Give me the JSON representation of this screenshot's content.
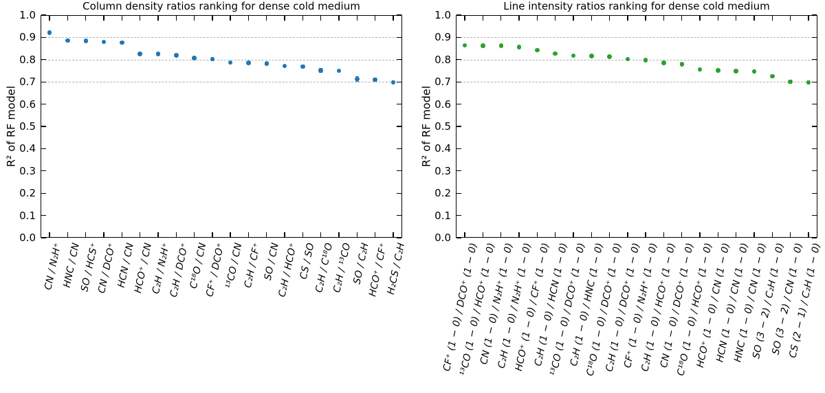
{
  "style": {
    "background": "#ffffff",
    "axis_color": "#000000",
    "grid_color": "#b0b0b0",
    "left_marker_color": "#1f77b4",
    "right_marker_color": "#2ca02c"
  },
  "y_axis": {
    "label": "R² of RF model",
    "tick_labels": [
      "0.0",
      "0.1",
      "0.2",
      "0.3",
      "0.4",
      "0.5",
      "0.6",
      "0.7",
      "0.8",
      "0.9",
      "1.0"
    ],
    "grid_values": [
      0.7,
      0.8,
      0.9
    ],
    "min": 0.0,
    "max": 1.0
  },
  "chart_data": [
    {
      "type": "scatter",
      "title": "Column density ratios ranking for dense cold medium",
      "ylabel": "R² of RF model",
      "xlabel": "",
      "ylim": [
        0.0,
        1.0
      ],
      "grid": "horizontal dashed lines at 0.7, 0.8, 0.9",
      "legend": "none",
      "marker_color": "#1f77b4",
      "categories": [
        "CN / N₂H⁺",
        "HNC / CN",
        "SO / HCS⁺",
        "CN / DCO⁺",
        "HCN / CN",
        "HCO⁺ / CN",
        "C₂H / N₂H⁺",
        "C₂H / DCO⁺",
        "C¹⁸O / CN",
        "CF⁺ / DCO⁺",
        "¹³CO / CN",
        "C₂H / CF⁺",
        "SO / CN",
        "C₂H / HCO⁺",
        "CS / SO",
        "C₂H / C¹⁸O",
        "C₂H / ¹³CO",
        "SO / C₂H",
        "HCO⁺ / CF⁺",
        "H₂CS / C₂H"
      ],
      "values": [
        0.921,
        0.886,
        0.884,
        0.879,
        0.877,
        0.826,
        0.825,
        0.82,
        0.807,
        0.802,
        0.787,
        0.786,
        0.782,
        0.771,
        0.769,
        0.752,
        0.75,
        0.713,
        0.71,
        0.698
      ],
      "errors": [
        0.003,
        0.003,
        0.003,
        0.003,
        0.004,
        0.004,
        0.006,
        0.004,
        0.004,
        0.007,
        0.004,
        0.004,
        0.004,
        0.004,
        0.006,
        0.008,
        0.004,
        0.01,
        0.008,
        0.006
      ]
    },
    {
      "type": "scatter",
      "title": "Line intensity ratios ranking for dense cold medium",
      "ylabel": "R² of RF model",
      "xlabel": "",
      "ylim": [
        0.0,
        1.0
      ],
      "grid": "horizontal dashed lines at 0.7, 0.8, 0.9",
      "legend": "none",
      "marker_color": "#2ca02c",
      "categories": [
        "CF⁺ (1 − 0) / DCO⁺ (1 − 0)",
        "¹³CO (1 − 0) / HCO⁺ (1 − 0)",
        "CN (1 − 0) / N₂H⁺ (1 − 0)",
        "C₂H (1 − 0) / N₂H⁺ (1 − 0)",
        "HCO⁺ (1 − 0) / CF⁺ (1 − 0)",
        "C₂H (1 − 0) / HCN (1 − 0)",
        "¹³CO (1 − 0) / DCO⁺ (1 − 0)",
        "C₂H (1 − 0) / HNC (1 − 0)",
        "C¹⁸O (1 − 0) / DCO⁺ (1 − 0)",
        "C₂H (1 − 0) / DCO⁺ (1 − 0)",
        "CF⁺ (1 − 0) / N₂H⁺ (1 − 0)",
        "C₂H (1 − 0) / HCO⁺ (1 − 0)",
        "CN (1 − 0) / DCO⁺ (1 − 0)",
        "C¹⁸O (1 − 0) / HCO⁺ (1 − 0)",
        "HCO⁺ (1 − 0) / CN (1 − 0)",
        "HCN (1 − 0) / CN (1 − 0)",
        "HNC (1 − 0) / CN (1 − 0)",
        "SO (3 − 2) / C₂H (1 − 0)",
        "SO (3 − 2) / CN (1 − 0)",
        "CS (2 − 1) / C₂H (1 − 0)"
      ],
      "values": [
        0.864,
        0.863,
        0.862,
        0.857,
        0.842,
        0.827,
        0.818,
        0.816,
        0.813,
        0.803,
        0.798,
        0.786,
        0.78,
        0.756,
        0.751,
        0.749,
        0.747,
        0.726,
        0.701,
        0.698
      ],
      "errors": [
        0.003,
        0.003,
        0.003,
        0.003,
        0.003,
        0.004,
        0.005,
        0.005,
        0.004,
        0.005,
        0.005,
        0.004,
        0.005,
        0.006,
        0.004,
        0.005,
        0.007,
        0.005,
        0.007,
        0.008
      ]
    }
  ]
}
